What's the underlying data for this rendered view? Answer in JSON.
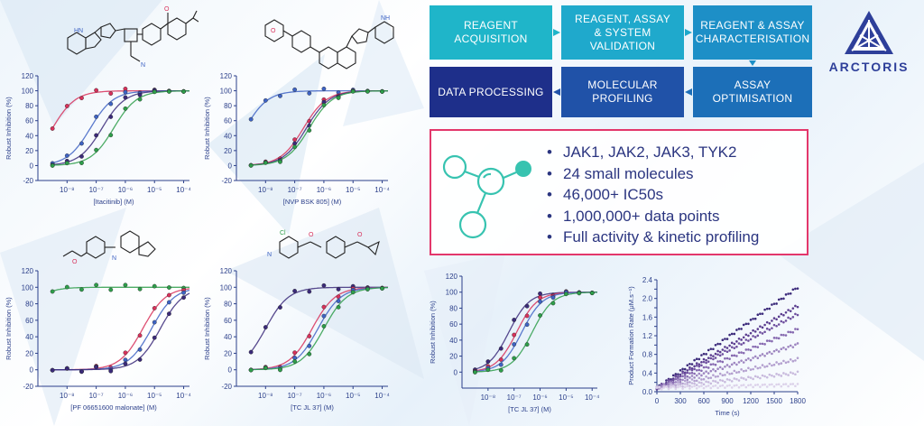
{
  "flow": {
    "boxes": [
      {
        "label": "REAGENT\nACQUISITION",
        "color": "#1fb5c9"
      },
      {
        "label": "REAGENT, ASSAY\n& SYSTEM\nVALIDATION",
        "color": "#1fa9cc"
      },
      {
        "label": "REAGENT & ASSAY\nCHARACTERISATION",
        "color": "#1d8fc7"
      },
      {
        "label": "ASSAY\nOPTIMISATION",
        "color": "#1c6fb8"
      },
      {
        "label": "MOLECULAR\nPROFILING",
        "color": "#2052a8"
      },
      {
        "label": "DATA PROCESSING",
        "color": "#1e2f8a"
      }
    ]
  },
  "logo": {
    "text": "ARCTORIS"
  },
  "stats": {
    "items": [
      "JAK1, JAK2, JAK3, TYK2",
      "24 small molecules",
      "46,000+ IC50s",
      "1,000,000+ data points",
      "Full activity & kinetic profiling"
    ],
    "bullet": "•",
    "border_color": "#e3376b",
    "icon": "molecule-icon"
  },
  "colors": {
    "red": "#d8315b",
    "blue": "#3e63c4",
    "purple": "#3b2a7a",
    "green": "#2e9e4a",
    "accent_teal": "#37c3b0"
  },
  "chart_data": [
    {
      "type": "line",
      "xlabel": "[Itacitinib] (M)",
      "ylabel": "Robust Inhibition (%)",
      "ylim": [
        -20,
        120
      ],
      "y_ticks": [
        "-20",
        "0",
        "20",
        "40",
        "60",
        "80",
        "100",
        "120"
      ],
      "x_ticks": [
        "10⁻⁸",
        "10⁻⁷",
        "10⁻⁶",
        "10⁻⁵",
        "10⁻⁴"
      ],
      "series": [
        {
          "ic50_log": -8.5,
          "color": "#d8315b"
        },
        {
          "ic50_log": -7.2,
          "color": "#3e63c4"
        },
        {
          "ic50_log": -6.8,
          "color": "#3b2a7a"
        },
        {
          "ic50_log": -6.4,
          "color": "#2e9e4a"
        }
      ]
    },
    {
      "type": "line",
      "xlabel": "[NVP BSK 805] (M)",
      "ylabel": "Robust Inhibition (%)",
      "ylim": [
        -20,
        120
      ],
      "y_ticks": [
        "-20",
        "0",
        "20",
        "40",
        "60",
        "80",
        "100",
        "120"
      ],
      "x_ticks": [
        "10⁻⁸",
        "10⁻⁷",
        "10⁻⁶",
        "10⁻⁵",
        "10⁻⁴"
      ],
      "series": [
        {
          "ic50_log": -8.7,
          "color": "#3e63c4"
        },
        {
          "ic50_log": -6.7,
          "color": "#d8315b"
        },
        {
          "ic50_log": -6.6,
          "color": "#3b2a7a"
        },
        {
          "ic50_log": -6.5,
          "color": "#2e9e4a"
        }
      ]
    },
    {
      "type": "line",
      "xlabel": "[PF 06651600 malonate] (M)",
      "ylabel": "Robust Inhibition (%)",
      "ylim": [
        -20,
        120
      ],
      "y_ticks": [
        "-20",
        "0",
        "20",
        "40",
        "60",
        "80",
        "100",
        "120"
      ],
      "x_ticks": [
        "10⁻⁸",
        "10⁻⁷",
        "10⁻⁶",
        "10⁻⁵",
        "10⁻⁴"
      ],
      "series": [
        {
          "ic50_log": -9.7,
          "color": "#2e9e4a"
        },
        {
          "ic50_log": -5.4,
          "color": "#d8315b"
        },
        {
          "ic50_log": -5.1,
          "color": "#3e63c4"
        },
        {
          "ic50_log": -4.8,
          "color": "#3b2a7a"
        }
      ]
    },
    {
      "type": "line",
      "xlabel": "[TC JL 37] (M)",
      "ylabel": "Robust Inhibition (%)",
      "ylim": [
        -20,
        120
      ],
      "y_ticks": [
        "-20",
        "0",
        "20",
        "40",
        "60",
        "80",
        "100",
        "120"
      ],
      "x_ticks": [
        "10⁻⁸",
        "10⁻⁷",
        "10⁻⁶",
        "10⁻⁵",
        "10⁻⁴"
      ],
      "series": [
        {
          "ic50_log": -8.0,
          "color": "#3b2a7a"
        },
        {
          "ic50_log": -6.4,
          "color": "#d8315b"
        },
        {
          "ic50_log": -6.2,
          "color": "#3e63c4"
        },
        {
          "ic50_log": -6.0,
          "color": "#2e9e4a"
        }
      ]
    },
    {
      "type": "line",
      "xlabel": "[TC JL 37] (M)",
      "ylabel": "Robust Inhibition (%)",
      "ylim": [
        -20,
        120
      ],
      "y_ticks": [
        "0",
        "20",
        "40",
        "60",
        "80",
        "100",
        "120"
      ],
      "x_ticks": [
        "10⁻⁸",
        "10⁻⁷",
        "10⁻⁶",
        "10⁻⁵",
        "10⁻⁴"
      ],
      "series": [
        {
          "ic50_log": -7.2,
          "color": "#3b2a7a"
        },
        {
          "ic50_log": -6.9,
          "color": "#d8315b"
        },
        {
          "ic50_log": -6.7,
          "color": "#3e63c4"
        },
        {
          "ic50_log": -6.3,
          "color": "#2e9e4a"
        }
      ]
    },
    {
      "type": "scatter",
      "xlabel": "Time (s)",
      "ylabel": "Product Formation Rate (μM.s⁻¹)",
      "xlim": [
        0,
        1800
      ],
      "ylim": [
        0,
        2.4
      ],
      "x_ticks": [
        "0",
        "300",
        "600",
        "900",
        "1200",
        "1500",
        "1800"
      ],
      "y_ticks": [
        "0.0",
        "0.2",
        "0.4",
        "0.6",
        "0.8",
        "1.0",
        "1.2",
        "1.4",
        "1.6",
        "1.8",
        "2.0",
        "2.2",
        "2.4"
      ],
      "series": [
        {
          "slope": 0.0012,
          "color": "#3b2a7a"
        },
        {
          "slope": 0.00098,
          "color": "#5a3c8e"
        },
        {
          "slope": 0.00088,
          "color": "#6e4f9e"
        },
        {
          "slope": 0.0007,
          "color": "#8669b0"
        },
        {
          "slope": 0.00052,
          "color": "#9d85c0"
        },
        {
          "slope": 0.00034,
          "color": "#b3a0cf"
        },
        {
          "slope": 0.00018,
          "color": "#c8badd"
        },
        {
          "slope": 4e-05,
          "color": "#dcd2ea"
        }
      ]
    }
  ]
}
